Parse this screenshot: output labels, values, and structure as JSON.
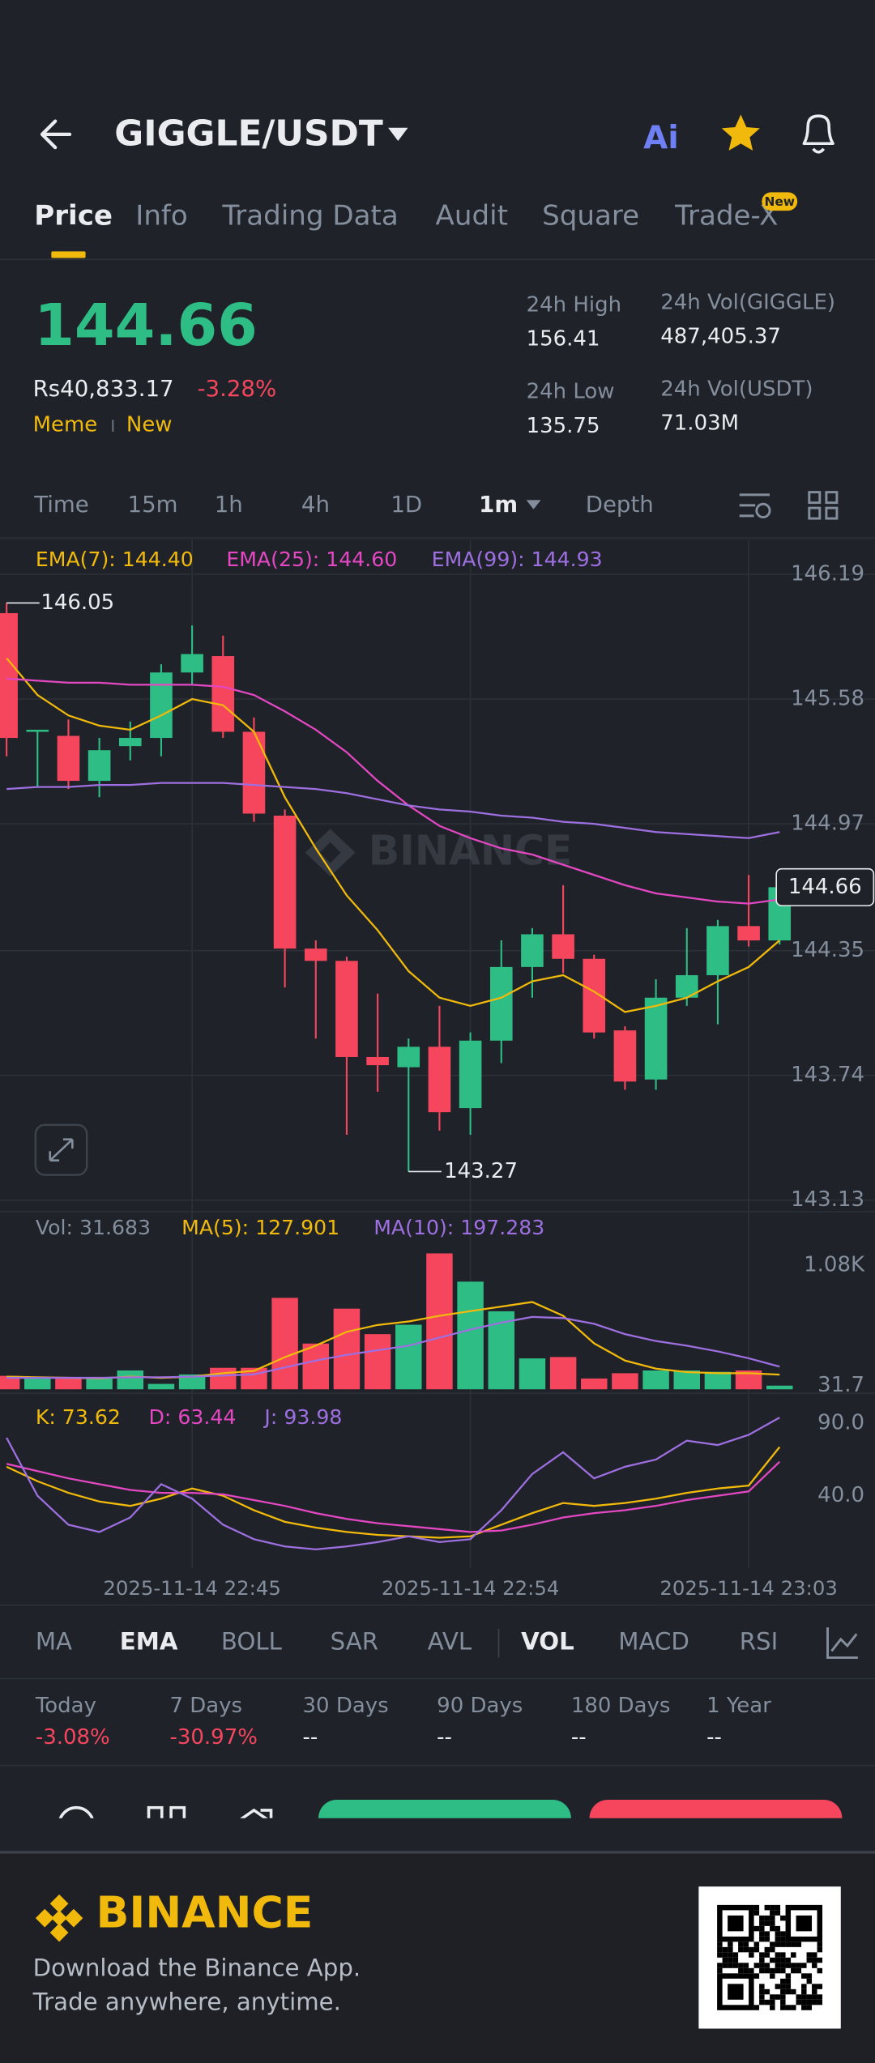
{
  "header": {
    "title": "GIGGLE/USDT",
    "ai": "Ai"
  },
  "tabs": {
    "items": [
      "Price",
      "Info",
      "Trading Data",
      "Audit",
      "Square",
      "Trade-X"
    ],
    "badge": "New"
  },
  "price": {
    "last": "144.66",
    "fiat": "Rs40,833.17",
    "change": "-3.28%",
    "tags": [
      "Meme",
      "New"
    ]
  },
  "stats": [
    {
      "label": "24h High",
      "value": "156.41"
    },
    {
      "label": "24h Vol(GIGGLE)",
      "value": "487,405.37"
    },
    {
      "label": "24h Low",
      "value": "135.75"
    },
    {
      "label": "24h Vol(USDT)",
      "value": "71.03M"
    }
  ],
  "intervals": [
    "Time",
    "15m",
    "1h",
    "4h",
    "1D",
    "1m",
    "Depth"
  ],
  "watermark": "BINANCE",
  "chart_data": [
    {
      "type": "candlestick",
      "categories": [
        null,
        null,
        null,
        null,
        null,
        null,
        "2025-11-14 22:45",
        null,
        null,
        null,
        null,
        null,
        null,
        null,
        null,
        "2025-11-14 22:54",
        null,
        null,
        null,
        null,
        null,
        null,
        null,
        null,
        "2025-11-14 23:03",
        null
      ],
      "open": [
        146.0,
        145.42,
        145.4,
        145.18,
        145.35,
        145.39,
        145.71,
        145.79,
        145.42,
        145.01,
        144.36,
        144.3,
        143.83,
        143.78,
        143.88,
        143.58,
        143.91,
        144.27,
        144.43,
        144.31,
        143.96,
        143.72,
        144.12,
        144.23,
        144.47,
        144.4
      ],
      "high": [
        146.05,
        145.43,
        145.48,
        145.39,
        145.47,
        145.75,
        145.94,
        145.89,
        145.49,
        145.04,
        144.4,
        144.32,
        144.14,
        143.92,
        144.08,
        143.95,
        144.4,
        144.46,
        144.67,
        144.33,
        143.98,
        144.21,
        144.46,
        144.5,
        144.72,
        144.67
      ],
      "low": [
        145.3,
        145.15,
        145.14,
        145.1,
        145.28,
        145.3,
        145.65,
        145.39,
        144.98,
        144.17,
        143.92,
        143.45,
        143.66,
        143.27,
        143.47,
        143.45,
        143.8,
        144.12,
        144.24,
        143.92,
        143.67,
        143.67,
        144.08,
        143.99,
        144.37,
        144.38
      ],
      "close": [
        145.39,
        145.43,
        145.18,
        145.33,
        145.39,
        145.71,
        145.8,
        145.42,
        145.02,
        144.36,
        144.3,
        143.83,
        143.79,
        143.88,
        143.56,
        143.91,
        144.27,
        144.43,
        144.31,
        143.95,
        143.71,
        144.12,
        144.23,
        144.47,
        144.4,
        144.66
      ],
      "up_color": "#2ebd85",
      "down_color": "#f6465d",
      "series": [
        {
          "name": "EMA(7): 144.40",
          "color": "#f0b90b",
          "values": [
            145.78,
            145.6,
            145.5,
            145.45,
            145.43,
            145.5,
            145.58,
            145.55,
            145.42,
            145.1,
            144.85,
            144.62,
            144.45,
            144.25,
            144.12,
            144.08,
            144.12,
            144.2,
            144.23,
            144.15,
            144.05,
            144.08,
            144.12,
            144.2,
            144.27,
            144.4
          ]
        },
        {
          "name": "EMA(25): 144.60",
          "color": "#e347c2",
          "values": [
            145.68,
            145.67,
            145.66,
            145.66,
            145.65,
            145.65,
            145.65,
            145.64,
            145.6,
            145.52,
            145.43,
            145.32,
            145.18,
            145.06,
            144.96,
            144.9,
            144.85,
            144.82,
            144.77,
            144.72,
            144.67,
            144.63,
            144.61,
            144.59,
            144.58,
            144.6
          ]
        },
        {
          "name": "EMA(99): 144.93",
          "color": "#9d6fe0",
          "values": [
            145.14,
            145.15,
            145.15,
            145.16,
            145.16,
            145.17,
            145.17,
            145.17,
            145.16,
            145.15,
            145.14,
            145.12,
            145.09,
            145.06,
            145.04,
            145.03,
            145.01,
            145.0,
            144.98,
            144.97,
            144.95,
            144.93,
            144.92,
            144.91,
            144.9,
            144.93
          ]
        }
      ],
      "high_label": 146.05,
      "low_label": 143.27,
      "last_price": 144.66,
      "ylim": [
        143.08,
        146.36
      ],
      "yticks": [
        146.19,
        145.58,
        144.97,
        144.35,
        143.74,
        143.13
      ],
      "grid": true
    },
    {
      "type": "bar",
      "label": "Vol: 31.683",
      "values": [
        117,
        94,
        94,
        94,
        164,
        47,
        129,
        187,
        187,
        796,
        398,
        702,
        480,
        562,
        1183,
        937,
        679,
        269,
        281,
        94,
        140,
        164,
        164,
        152,
        164,
        31.683
      ],
      "series": [
        {
          "name": "MA(5): 127.901",
          "color": "#f0b90b",
          "values": [
            110,
            105,
            100,
            95,
            110,
            100,
            110,
            140,
            160,
            280,
            380,
            500,
            560,
            590,
            640,
            680,
            720,
            760,
            640,
            400,
            250,
            180,
            150,
            140,
            140,
            127.901
          ]
        },
        {
          "name": "MA(10): 197.283",
          "color": "#9d6fe0",
          "values": [
            100,
            100,
            100,
            100,
            105,
            105,
            110,
            120,
            130,
            190,
            250,
            300,
            340,
            380,
            450,
            520,
            580,
            630,
            620,
            570,
            480,
            420,
            380,
            330,
            270,
            197.283
          ]
        }
      ],
      "ylim": [
        0,
        1500
      ],
      "yticks": [
        {
          "value": 1080,
          "label": "1.08K"
        },
        31.7
      ]
    },
    {
      "type": "line",
      "series": [
        {
          "name": "K: 73.62",
          "color": "#f0b90b",
          "values": [
            60,
            50,
            42,
            36,
            33,
            38,
            45,
            40,
            30,
            22,
            18,
            15,
            13,
            12,
            11,
            12,
            20,
            28,
            35,
            33,
            35,
            38,
            42,
            45,
            47,
            73.62
          ]
        },
        {
          "name": "D: 63.44",
          "color": "#e347c2",
          "values": [
            62,
            57,
            52,
            48,
            44,
            42,
            42,
            41,
            37,
            33,
            28,
            24,
            21,
            19,
            17,
            15,
            16,
            20,
            25,
            28,
            30,
            33,
            37,
            40,
            43,
            63.44
          ]
        },
        {
          "name": "J: 93.98",
          "color": "#9d6fe0",
          "values": [
            80,
            40,
            20,
            15,
            25,
            48,
            38,
            20,
            10,
            5,
            3,
            5,
            8,
            12,
            8,
            10,
            30,
            55,
            70,
            52,
            60,
            65,
            78,
            75,
            82,
            93.98
          ]
        }
      ],
      "ylim": [
        -10,
        108
      ],
      "yticks": [
        {
          "value": 90,
          "label": "90.0"
        },
        {
          "value": 40,
          "label": "40.0"
        }
      ]
    }
  ],
  "indicators": [
    "MA",
    "EMA",
    "BOLL",
    "SAR",
    "AVL",
    "VOL",
    "MACD",
    "RSI"
  ],
  "performance": [
    {
      "label": "Today",
      "value": "-3.08%"
    },
    {
      "label": "7 Days",
      "value": "-30.97%"
    },
    {
      "label": "30 Days",
      "value": "--"
    },
    {
      "label": "90 Days",
      "value": "--"
    },
    {
      "label": "180 Days",
      "value": "--"
    },
    {
      "label": "1 Year",
      "value": "--"
    }
  ],
  "footer": {
    "brand": "BINANCE",
    "line1": "Download the Binance App.",
    "line2": "Trade anywhere, anytime."
  }
}
